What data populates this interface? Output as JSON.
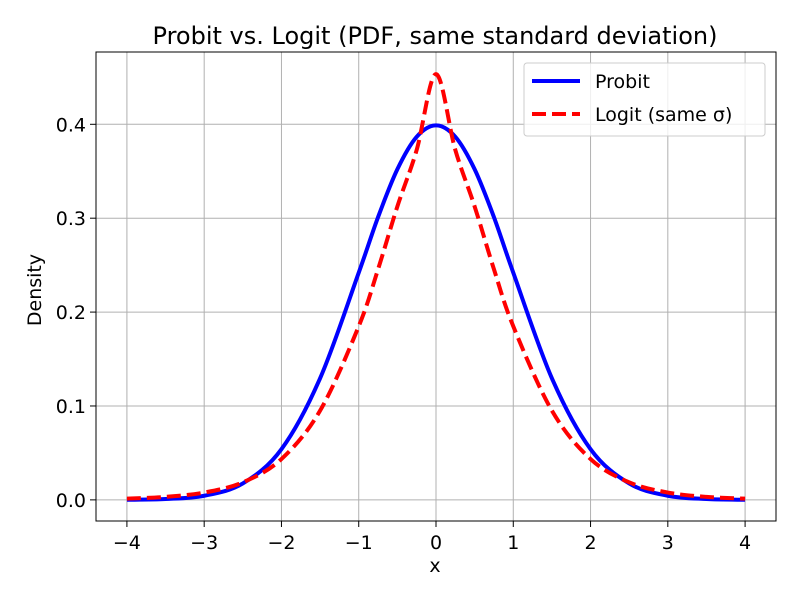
{
  "chart_data": {
    "type": "line",
    "title": "Probit vs. Logit (PDF, same standard deviation)",
    "xlabel": "x",
    "ylabel": "Density",
    "xlim": [
      -4.4,
      4.4
    ],
    "ylim": [
      -0.0225,
      0.477
    ],
    "xticks": [
      -4,
      -3,
      -2,
      -1,
      0,
      1,
      2,
      3,
      4
    ],
    "xtick_labels": [
      "−4",
      "−3",
      "−2",
      "−1",
      "0",
      "1",
      "2",
      "3",
      "4"
    ],
    "yticks": [
      0.0,
      0.1,
      0.2,
      0.3,
      0.4
    ],
    "ytick_labels": [
      "0.0",
      "0.1",
      "0.2",
      "0.3",
      "0.4"
    ],
    "grid": true,
    "legend_position": "top-right",
    "x": [
      -4.0,
      -3.5,
      -3.0,
      -2.5,
      -2.0,
      -1.5,
      -1.0,
      -0.75,
      -0.5,
      -0.25,
      0.0,
      0.25,
      0.5,
      0.75,
      1.0,
      1.5,
      2.0,
      2.5,
      3.0,
      3.5,
      4.0
    ],
    "series": [
      {
        "name": "Probit",
        "color": "#0000ff",
        "style": "solid",
        "values": [
          0.0001,
          0.0009,
          0.0044,
          0.0175,
          0.054,
          0.1295,
          0.242,
          0.3011,
          0.3521,
          0.3867,
          0.3989,
          0.3867,
          0.3521,
          0.3011,
          0.242,
          0.1295,
          0.054,
          0.0175,
          0.0044,
          0.0009,
          0.0001
        ]
      },
      {
        "name": "Logit (same σ)",
        "color": "#ff0000",
        "style": "dashed",
        "values": [
          0.0013,
          0.0032,
          0.0078,
          0.0187,
          0.0435,
          0.095,
          0.1849,
          0.2456,
          0.3125,
          0.3727,
          0.4534,
          0.3727,
          0.3125,
          0.2456,
          0.1849,
          0.095,
          0.0435,
          0.0187,
          0.0078,
          0.0032,
          0.0013
        ]
      }
    ]
  }
}
